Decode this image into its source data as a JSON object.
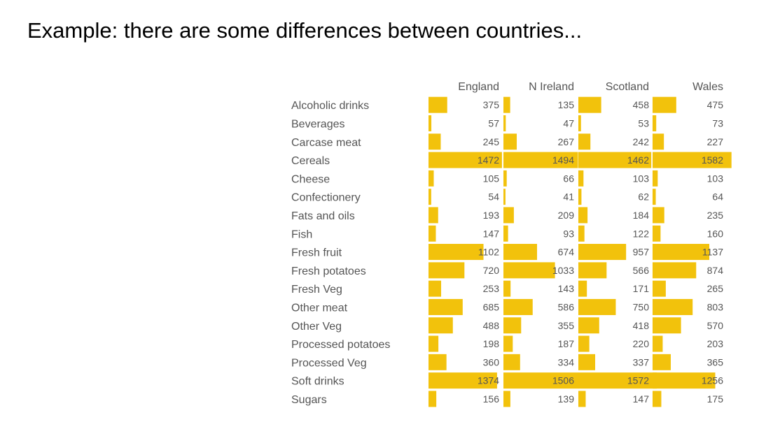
{
  "slide": {
    "title": "Example: there are some differences between countries..."
  },
  "chart_data": {
    "type": "bar",
    "orientation": "horizontal",
    "layout": "small-multiples table",
    "bar_color": "#f2c20c",
    "text_color": "#555555",
    "value_max": 1600,
    "categories": [
      "Alcoholic drinks",
      "Beverages",
      "Carcase meat",
      "Cereals",
      "Cheese",
      "Confectionery",
      "Fats and oils",
      "Fish",
      "Fresh fruit",
      "Fresh potatoes",
      "Fresh Veg",
      "Other meat",
      "Other Veg",
      "Processed potatoes",
      "Processed Veg",
      "Soft drinks",
      "Sugars"
    ],
    "series": [
      {
        "name": "England",
        "values": [
          375,
          57,
          245,
          1472,
          105,
          54,
          193,
          147,
          1102,
          720,
          253,
          685,
          488,
          198,
          360,
          1374,
          156
        ]
      },
      {
        "name": "N Ireland",
        "values": [
          135,
          47,
          267,
          1494,
          66,
          41,
          209,
          93,
          674,
          1033,
          143,
          586,
          355,
          187,
          334,
          1506,
          139
        ]
      },
      {
        "name": "Scotland",
        "values": [
          458,
          53,
          242,
          1462,
          103,
          62,
          184,
          122,
          957,
          566,
          171,
          750,
          418,
          220,
          337,
          1572,
          147
        ]
      },
      {
        "name": "Wales",
        "values": [
          475,
          73,
          227,
          1582,
          103,
          64,
          235,
          160,
          1137,
          874,
          265,
          803,
          570,
          203,
          365,
          1256,
          175
        ]
      }
    ]
  }
}
